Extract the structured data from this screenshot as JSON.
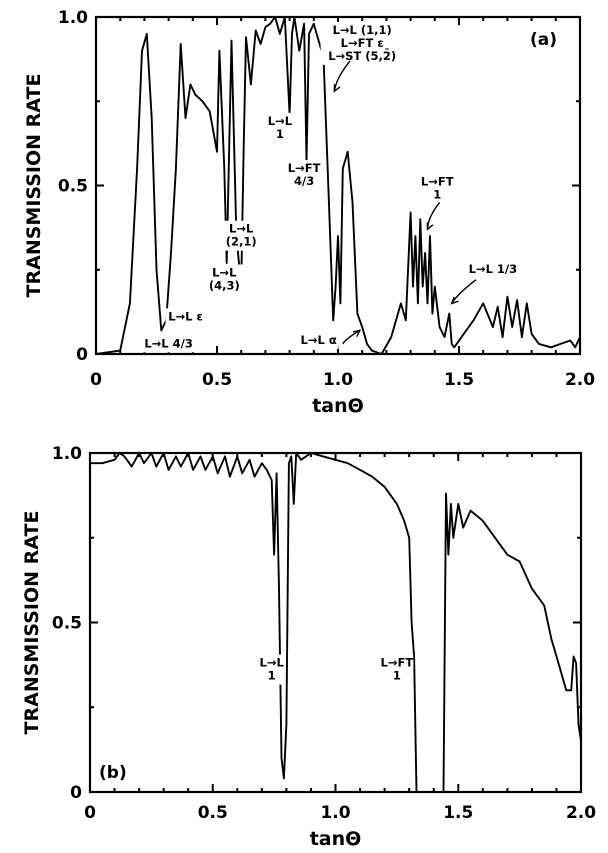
{
  "chart_data": [
    {
      "type": "line",
      "panel_label": "(a)",
      "xlabel": "tanΘ",
      "ylabel": "TRANSMISSION RATE",
      "xlim": [
        0,
        2.0
      ],
      "ylim": [
        0,
        1.0
      ],
      "x_tick_labels": [
        "0",
        "0.5",
        "1.0",
        "1.5",
        "2.0"
      ],
      "y_tick_labels": [
        "0",
        "0.5",
        "1.0"
      ],
      "grid": false,
      "annotations": [
        {
          "text": [
            "L→L 4/3"
          ],
          "x": 0.3,
          "y": 0.02
        },
        {
          "text": [
            "L→L ε"
          ],
          "x": 0.37,
          "y": 0.1
        },
        {
          "text": [
            "L→L",
            "(4,3)"
          ],
          "x": 0.53,
          "y": 0.23
        },
        {
          "text": [
            "L→L",
            "(2,1)"
          ],
          "x": 0.6,
          "y": 0.36
        },
        {
          "text": [
            "L→FT",
            "4/3"
          ],
          "x": 0.86,
          "y": 0.54
        },
        {
          "text": [
            "L→L",
            "1"
          ],
          "x": 0.76,
          "y": 0.68
        },
        {
          "text": [
            "L→L (1,1)",
            "L→FT ε",
            "L→ST (5,2̄)"
          ],
          "x": 1.1,
          "y": 0.95
        },
        {
          "text": [
            "L→L α"
          ],
          "x": 0.92,
          "y": 0.03
        },
        {
          "text": [
            "L→FT",
            "1"
          ],
          "x": 1.41,
          "y": 0.5
        },
        {
          "text": [
            "L→L 1/3"
          ],
          "x": 1.64,
          "y": 0.24
        }
      ],
      "series": [
        {
          "x": [
            0,
            0.1,
            0.14,
            0.17,
            0.19,
            0.21,
            0.23,
            0.25,
            0.27,
            0.29,
            0.31,
            0.33,
            0.35,
            0.37,
            0.39,
            0.41,
            0.44,
            0.47,
            0.5,
            0.51,
            0.53,
            0.54,
            0.56,
            0.58,
            0.6,
            0.61,
            0.62,
            0.64,
            0.66,
            0.68,
            0.7,
            0.72,
            0.74,
            0.76,
            0.78,
            0.8,
            0.81,
            0.82,
            0.84,
            0.86,
            0.87,
            0.88,
            0.9,
            0.92,
            0.94,
            0.96,
            0.98,
            0.99,
            1.0,
            1.01,
            1.02,
            1.04,
            1.06,
            1.08,
            1.1,
            1.12,
            1.14,
            1.18,
            1.22,
            1.26,
            1.28,
            1.3,
            1.31,
            1.32,
            1.33,
            1.34,
            1.35,
            1.36,
            1.37,
            1.38,
            1.39,
            1.4,
            1.42,
            1.44,
            1.46,
            1.47,
            1.48,
            1.52,
            1.56,
            1.6,
            1.64,
            1.66,
            1.68,
            1.7,
            1.72,
            1.74,
            1.76,
            1.78,
            1.8,
            1.83,
            1.88,
            1.92,
            1.96,
            1.98,
            2.0
          ],
          "y": [
            0,
            0.01,
            0.15,
            0.55,
            0.9,
            0.95,
            0.7,
            0.25,
            0.07,
            0.1,
            0.3,
            0.55,
            0.92,
            0.7,
            0.8,
            0.77,
            0.75,
            0.72,
            0.6,
            0.9,
            0.55,
            0.27,
            0.93,
            0.35,
            0.2,
            0.6,
            0.94,
            0.8,
            0.96,
            0.92,
            0.97,
            0.98,
            1.0,
            0.95,
            1.0,
            0.71,
            0.95,
            1.0,
            0.9,
            0.98,
            0.57,
            0.95,
            0.98,
            0.93,
            0.88,
            0.5,
            0.1,
            0.2,
            0.35,
            0.15,
            0.55,
            0.6,
            0.45,
            0.12,
            0.08,
            0.03,
            0.01,
            0.0,
            0.05,
            0.15,
            0.1,
            0.42,
            0.2,
            0.35,
            0.15,
            0.4,
            0.2,
            0.3,
            0.15,
            0.35,
            0.12,
            0.2,
            0.08,
            0.05,
            0.12,
            0.03,
            0.02,
            0.06,
            0.1,
            0.15,
            0.08,
            0.14,
            0.05,
            0.17,
            0.08,
            0.16,
            0.05,
            0.15,
            0.06,
            0.03,
            0.02,
            0.03,
            0.04,
            0.02,
            0.05
          ]
        }
      ]
    },
    {
      "type": "line",
      "panel_label": "(b)",
      "xlabel": "tanΘ",
      "ylabel": "TRANSMISSION RATE",
      "xlim": [
        0,
        2.0
      ],
      "ylim": [
        0,
        1.0
      ],
      "x_tick_labels": [
        "0",
        "0.5",
        "1.0",
        "1.5",
        "2.0"
      ],
      "y_tick_labels": [
        "0",
        "0.5",
        "1.0"
      ],
      "grid": false,
      "annotations": [
        {
          "text": [
            "L→L",
            "1"
          ],
          "x": 0.74,
          "y": 0.37
        },
        {
          "text": [
            "L→FT",
            "1"
          ],
          "x": 1.25,
          "y": 0.37
        }
      ],
      "series": [
        {
          "x": [
            0,
            0.05,
            0.1,
            0.12,
            0.14,
            0.17,
            0.2,
            0.22,
            0.25,
            0.27,
            0.3,
            0.32,
            0.35,
            0.37,
            0.4,
            0.42,
            0.45,
            0.47,
            0.5,
            0.52,
            0.55,
            0.57,
            0.6,
            0.62,
            0.65,
            0.67,
            0.7,
            0.72,
            0.74,
            0.75,
            0.76,
            0.77,
            0.78,
            0.79,
            0.8,
            0.81,
            0.82,
            0.83,
            0.84,
            0.86,
            0.9,
            0.95,
            1.0,
            1.05,
            1.1,
            1.15,
            1.2,
            1.25,
            1.28,
            1.3,
            1.31,
            1.32,
            1.33,
            1.34,
            1.35,
            1.4,
            1.44,
            1.45,
            1.46,
            1.47,
            1.48,
            1.5,
            1.52,
            1.55,
            1.6,
            1.65,
            1.7,
            1.75,
            1.8,
            1.85,
            1.88,
            1.9,
            1.92,
            1.94,
            1.96,
            1.97,
            1.98,
            1.99,
            2.0
          ],
          "y": [
            0.97,
            0.97,
            0.98,
            1.0,
            0.99,
            0.96,
            1.0,
            0.97,
            1.0,
            0.96,
            1.0,
            0.95,
            0.99,
            0.96,
            1.0,
            0.95,
            0.99,
            0.95,
            0.99,
            0.94,
            0.99,
            0.93,
            0.99,
            0.94,
            0.98,
            0.93,
            0.97,
            0.95,
            0.92,
            0.7,
            0.94,
            0.6,
            0.1,
            0.04,
            0.2,
            0.97,
            0.99,
            0.85,
            1.0,
            0.98,
            1.0,
            0.99,
            0.98,
            0.97,
            0.95,
            0.93,
            0.9,
            0.85,
            0.8,
            0.75,
            0.5,
            0.4,
            0.0,
            0.0,
            0.0,
            0.0,
            0.0,
            0.88,
            0.7,
            0.85,
            0.75,
            0.85,
            0.78,
            0.83,
            0.8,
            0.75,
            0.7,
            0.68,
            0.6,
            0.55,
            0.45,
            0.4,
            0.35,
            0.3,
            0.3,
            0.4,
            0.38,
            0.2,
            0.15
          ]
        }
      ]
    }
  ]
}
